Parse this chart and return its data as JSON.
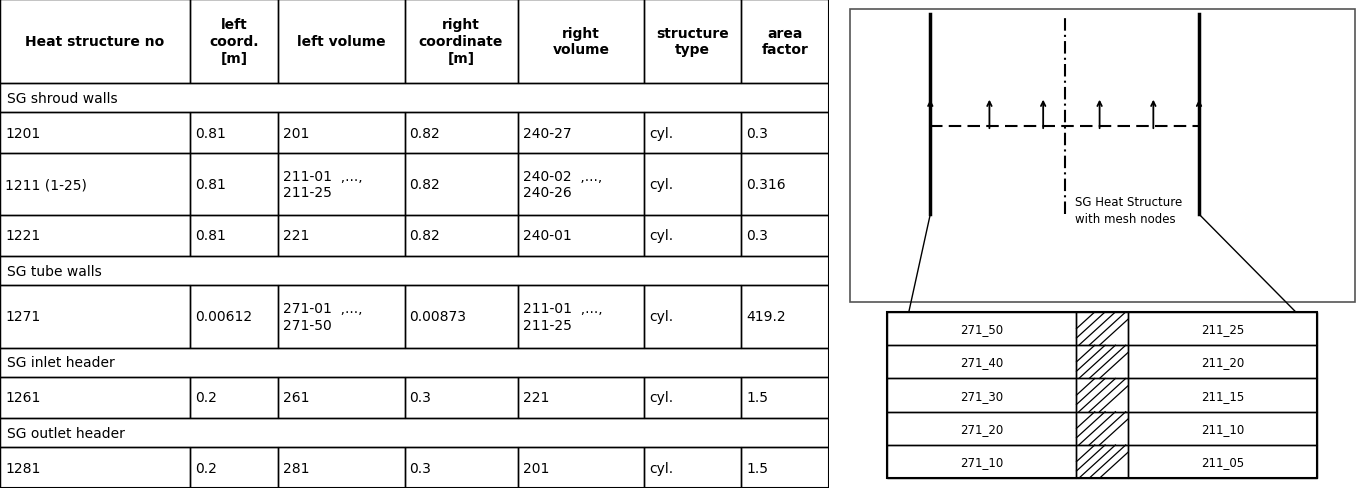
{
  "headers": [
    "Heat structure no",
    "left\ncoord.\n[m]",
    "left volume",
    "right\ncoordinate\n[m]",
    "right\nvolume",
    "structure\ntype",
    "area\nfactor"
  ],
  "rows": [
    [
      "1201",
      "0.81",
      "201",
      "0.82",
      "240-27",
      "cyl.",
      "0.3"
    ],
    [
      "1211 (1-25)",
      "0.81",
      "211-01  ,...,\n211-25",
      "0.82",
      "240-02  ,...,\n240-26",
      "cyl.",
      "0.316"
    ],
    [
      "1221",
      "0.81",
      "221",
      "0.82",
      "240-01",
      "cyl.",
      "0.3"
    ],
    [
      "1271",
      "0.00612",
      "271-01  ,...,\n271-50",
      "0.00873",
      "211-01  ,...,\n211-25",
      "cyl.",
      "419.2"
    ],
    [
      "1261",
      "0.2",
      "261",
      "0.3",
      "221",
      "cyl.",
      "1.5"
    ],
    [
      "1281",
      "0.2",
      "281",
      "0.3",
      "201",
      "cyl.",
      "1.5"
    ]
  ],
  "section_labels": [
    "SG shroud walls",
    "SG tube walls",
    "SG inlet header",
    "SG outlet header"
  ],
  "col_widths_pts": [
    168,
    78,
    112,
    100,
    112,
    86,
    78
  ],
  "row_heights_pts": [
    62,
    22,
    30,
    46,
    30,
    22,
    46,
    22,
    30,
    22,
    30
  ],
  "diagram_labels_left": [
    "271_50",
    "271_40",
    "271_30",
    "271_20",
    "271_10"
  ],
  "diagram_labels_right": [
    "211_25",
    "211_20",
    "211_15",
    "211_10",
    "211_05"
  ],
  "sg_label": "SG Heat Structure\nwith mesh nodes",
  "bg": "#ffffff",
  "tc": "#000000",
  "header_fs": 10,
  "cell_fs": 10,
  "section_fs": 10,
  "diag_fs": 8.5
}
